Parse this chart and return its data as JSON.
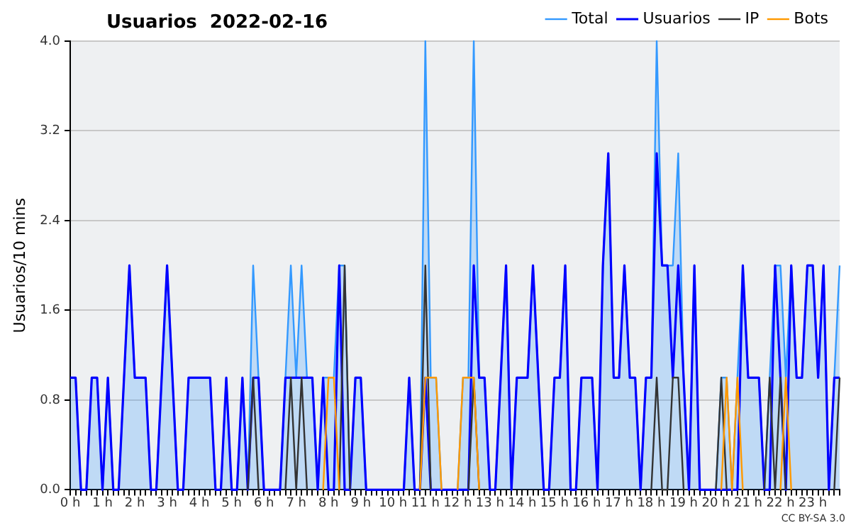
{
  "chart_data": {
    "type": "line",
    "title": "Usuarios  2022-02-16",
    "ylabel": "Usuarios/10 mins",
    "categories": [
      "0 h",
      null,
      null,
      null,
      null,
      null,
      "1 h",
      null,
      null,
      null,
      null,
      null,
      "2 h",
      null,
      null,
      null,
      null,
      null,
      "3 h",
      null,
      null,
      null,
      null,
      null,
      "4 h",
      null,
      null,
      null,
      null,
      null,
      "5 h",
      null,
      null,
      null,
      null,
      null,
      "6 h",
      null,
      null,
      null,
      null,
      null,
      "7 h",
      null,
      null,
      null,
      null,
      null,
      "8 h",
      null,
      null,
      null,
      null,
      null,
      "9 h",
      null,
      null,
      null,
      null,
      null,
      "10 h",
      null,
      null,
      null,
      null,
      null,
      "11 h",
      null,
      null,
      null,
      null,
      null,
      "12 h",
      null,
      null,
      null,
      null,
      null,
      "13 h",
      null,
      null,
      null,
      null,
      null,
      "14 h",
      null,
      null,
      null,
      null,
      null,
      "15 h",
      null,
      null,
      null,
      null,
      null,
      "16 h",
      null,
      null,
      null,
      null,
      null,
      "17 h",
      null,
      null,
      null,
      null,
      null,
      "18 h",
      null,
      null,
      null,
      null,
      null,
      "19 h",
      null,
      null,
      null,
      null,
      null,
      "20 h",
      null,
      null,
      null,
      null,
      null,
      "21 h",
      null,
      null,
      null,
      null,
      null,
      "22 h",
      null,
      null,
      null,
      null,
      null,
      "23 h",
      null,
      null,
      null,
      null,
      null
    ],
    "series": [
      {
        "name": "Total",
        "type": "area",
        "color": "#3399ff",
        "values": [
          1,
          1,
          0,
          0,
          1,
          1,
          0,
          1,
          0,
          0,
          1,
          2,
          1,
          1,
          1,
          0,
          0,
          1,
          2,
          1,
          0,
          0,
          1,
          1,
          1,
          1,
          1,
          0,
          0,
          1,
          0,
          0,
          1,
          0,
          2,
          1,
          0,
          0,
          0,
          0,
          1,
          2,
          1,
          2,
          1,
          1,
          0,
          1,
          1,
          1,
          2,
          2,
          0,
          1,
          1,
          0,
          0,
          0,
          0,
          0,
          0,
          0,
          0,
          1,
          0,
          0,
          4,
          1,
          1,
          0,
          0,
          0,
          0,
          1,
          1,
          4,
          1,
          1,
          0,
          0,
          1,
          2,
          0,
          1,
          1,
          1,
          2,
          1,
          0,
          0,
          1,
          1,
          2,
          0,
          0,
          1,
          1,
          1,
          0,
          2,
          3,
          1,
          1,
          2,
          1,
          1,
          0,
          1,
          1,
          4,
          2,
          2,
          2,
          3,
          1,
          0,
          2,
          0,
          0,
          0,
          0,
          1,
          1,
          0,
          1,
          2,
          1,
          1,
          1,
          0,
          1,
          2,
          2,
          1,
          2,
          1,
          1,
          2,
          2,
          1,
          2,
          0,
          1,
          2
        ]
      },
      {
        "name": "Usuarios",
        "color": "#0000ff",
        "values": [
          1,
          1,
          0,
          0,
          1,
          1,
          0,
          1,
          0,
          0,
          1,
          2,
          1,
          1,
          1,
          0,
          0,
          1,
          2,
          1,
          0,
          0,
          1,
          1,
          1,
          1,
          1,
          0,
          0,
          1,
          0,
          0,
          1,
          0,
          1,
          1,
          0,
          0,
          0,
          0,
          1,
          1,
          1,
          1,
          1,
          1,
          0,
          1,
          0,
          0,
          2,
          0,
          0,
          1,
          1,
          0,
          0,
          0,
          0,
          0,
          0,
          0,
          0,
          1,
          0,
          0,
          1,
          0,
          0,
          0,
          0,
          0,
          0,
          0,
          0,
          2,
          1,
          1,
          0,
          0,
          1,
          2,
          0,
          1,
          1,
          1,
          2,
          1,
          0,
          0,
          1,
          1,
          2,
          0,
          0,
          1,
          1,
          1,
          0,
          2,
          3,
          1,
          1,
          2,
          1,
          1,
          0,
          1,
          1,
          3,
          2,
          2,
          1,
          2,
          1,
          0,
          2,
          0,
          0,
          0,
          0,
          0,
          0,
          0,
          0,
          2,
          1,
          1,
          1,
          0,
          0,
          2,
          1,
          0,
          2,
          1,
          1,
          2,
          2,
          1,
          2,
          0,
          1,
          1
        ]
      },
      {
        "name": "IP",
        "color": "#333333",
        "values": [
          null,
          null,
          null,
          null,
          null,
          null,
          null,
          null,
          null,
          null,
          null,
          null,
          null,
          null,
          null,
          null,
          null,
          null,
          null,
          null,
          null,
          null,
          null,
          null,
          null,
          null,
          null,
          null,
          null,
          null,
          null,
          null,
          null,
          0,
          1,
          0,
          null,
          null,
          null,
          null,
          0,
          1,
          0,
          1,
          0,
          null,
          null,
          null,
          null,
          null,
          0,
          2,
          0,
          null,
          null,
          null,
          null,
          null,
          null,
          null,
          null,
          null,
          null,
          null,
          null,
          0,
          2,
          0,
          null,
          null,
          null,
          null,
          null,
          null,
          0,
          1,
          0,
          null,
          null,
          null,
          null,
          null,
          null,
          null,
          null,
          null,
          null,
          null,
          null,
          null,
          null,
          null,
          null,
          null,
          null,
          null,
          null,
          null,
          null,
          null,
          null,
          null,
          null,
          null,
          null,
          null,
          null,
          null,
          0,
          1,
          0,
          0,
          1,
          1,
          0,
          null,
          null,
          null,
          null,
          null,
          0,
          1,
          0,
          null,
          null,
          null,
          null,
          null,
          null,
          0,
          1,
          0,
          1,
          0,
          null,
          null,
          null,
          null,
          null,
          null,
          null,
          null,
          0,
          1
        ]
      },
      {
        "name": "Bots",
        "color": "#ff9900",
        "values": [
          null,
          null,
          null,
          null,
          null,
          null,
          null,
          null,
          null,
          null,
          null,
          null,
          null,
          null,
          null,
          null,
          null,
          null,
          null,
          null,
          null,
          null,
          null,
          null,
          null,
          null,
          null,
          null,
          null,
          null,
          null,
          null,
          null,
          null,
          null,
          null,
          null,
          null,
          null,
          null,
          null,
          null,
          null,
          null,
          null,
          null,
          null,
          0,
          1,
          1,
          0,
          null,
          null,
          null,
          null,
          null,
          null,
          null,
          null,
          null,
          null,
          null,
          null,
          null,
          null,
          0,
          1,
          1,
          1,
          0,
          null,
          null,
          0,
          1,
          1,
          1,
          0,
          null,
          null,
          null,
          null,
          null,
          null,
          null,
          null,
          null,
          null,
          null,
          null,
          null,
          null,
          null,
          null,
          null,
          null,
          null,
          null,
          null,
          null,
          null,
          null,
          null,
          null,
          null,
          null,
          null,
          null,
          null,
          null,
          null,
          null,
          null,
          null,
          null,
          null,
          null,
          null,
          null,
          null,
          null,
          null,
          0,
          1,
          0,
          1,
          0,
          null,
          null,
          null,
          null,
          null,
          null,
          0,
          1,
          0,
          null,
          null,
          null,
          null,
          null,
          null,
          null,
          null,
          null
        ]
      }
    ],
    "ylim": [
      0,
      4
    ],
    "yticks": [
      {
        "value": 0,
        "label": "0.0"
      },
      0.8,
      1.6,
      2.4,
      3.2,
      {
        "value": 4,
        "label": "4.0"
      }
    ],
    "grid": "y",
    "legend": "top right",
    "marker": "none",
    "line_style": "solid",
    "annotations": [
      "CC BY-SA 3.0"
    ]
  }
}
